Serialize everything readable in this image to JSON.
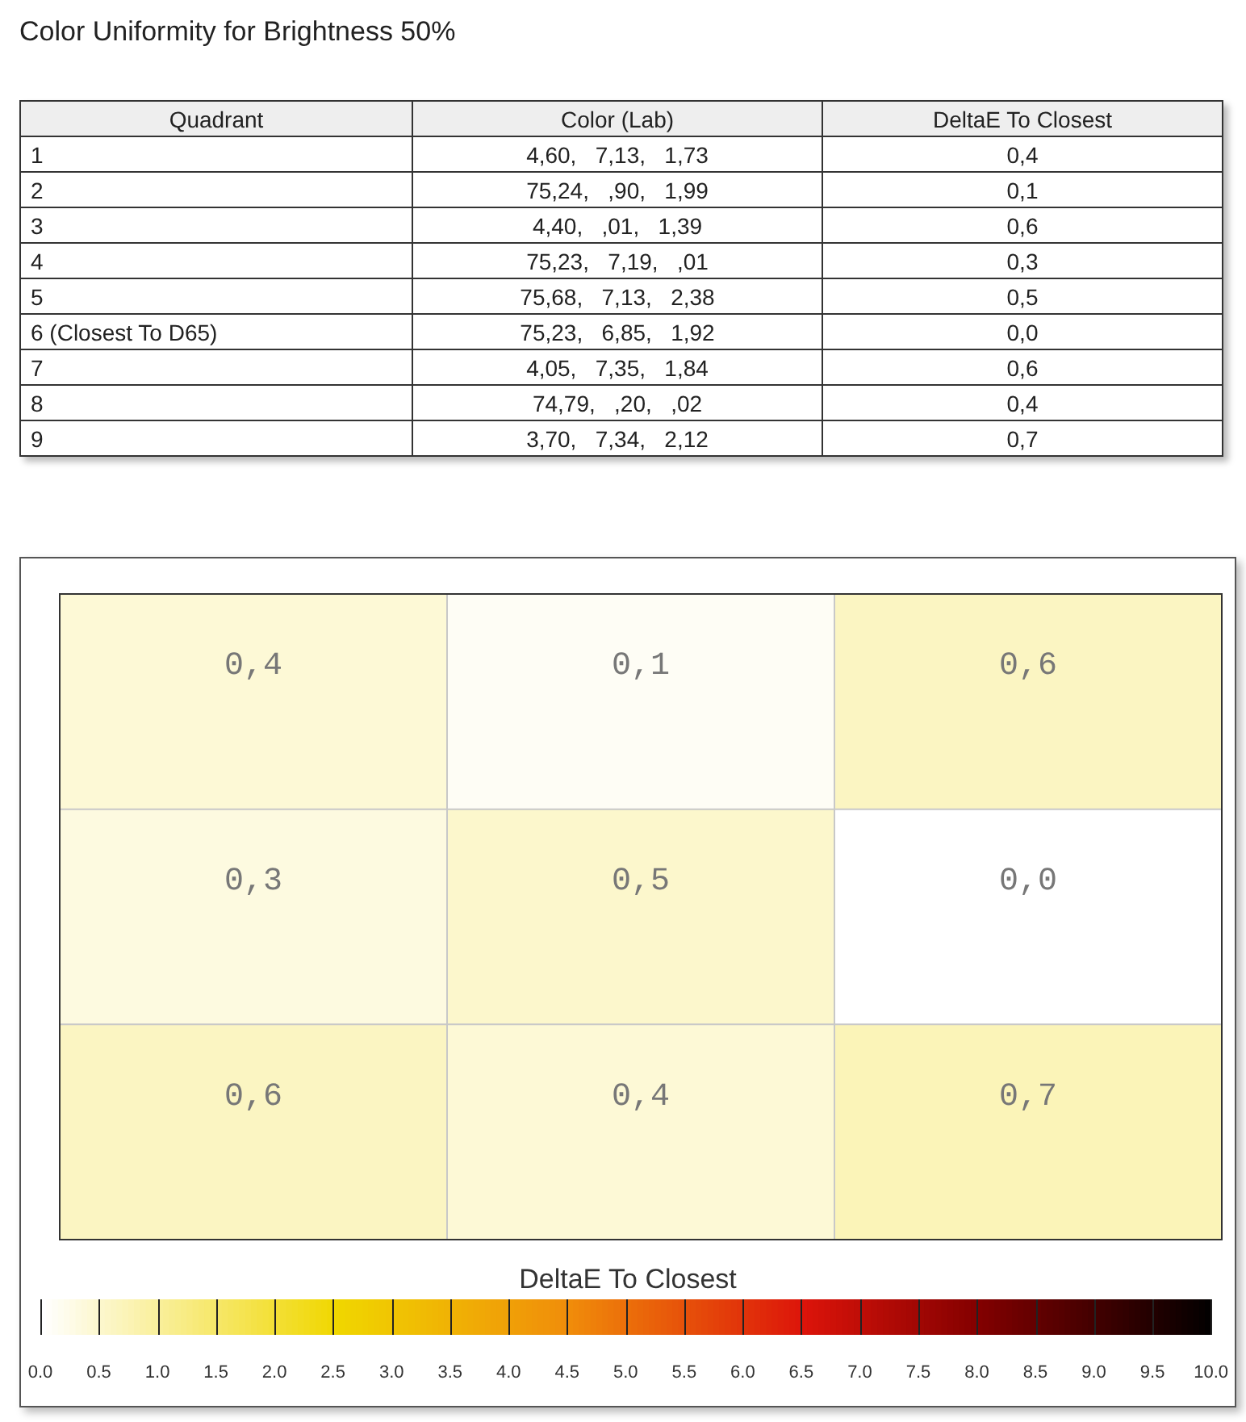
{
  "chart_data": [
    {
      "type": "other",
      "title": "Color Uniformity for Brightness 50%",
      "categories": [
        "Quadrant",
        "Color (Lab)",
        "DeltaE To Closest"
      ],
      "annotations": [
        "1",
        "4,60,   7,13,   1,73",
        "0,4",
        "2",
        "75,24,   ,90,   1,99",
        "0,1",
        "3",
        "4,40,   ,01,   1,39",
        "0,6",
        "4",
        "75,23,   7,19,   ,01",
        "0,3",
        "5",
        "75,68,   7,13,   2,38",
        "0,5",
        "6 (Closest To D65)",
        "75,23,   6,85,   1,92",
        "0,0",
        "7",
        "4,05,   7,35,   1,84",
        "0,6",
        "8",
        "74,79,   ,20,   ,02",
        "0,4",
        "9",
        "3,70,   7,34,   2,12",
        "0,7"
      ]
    },
    {
      "type": "heatmap",
      "categories": [
        null,
        null,
        null
      ],
      "y_categories": [
        null,
        null,
        null
      ],
      "cells": [
        [
          0.4,
          0.1,
          0.6
        ],
        [
          0.3,
          0.5,
          0.0
        ],
        [
          0.6,
          0.4,
          0.7
        ]
      ],
      "cell_labels": [
        [
          "0,4",
          "0,1",
          "0,6"
        ],
        [
          "0,3",
          "0,5",
          "0,0"
        ],
        [
          "0,6",
          "0,4",
          "0,7"
        ]
      ],
      "clabel": "DeltaE To Closest",
      "clim": [
        0,
        10
      ],
      "cticks": [
        {
          "value": 0,
          "label": "0.0"
        },
        {
          "value": 0.5,
          "label": "0.5"
        },
        {
          "value": 1,
          "label": "1.0"
        },
        {
          "value": 1.5,
          "label": "1.5"
        },
        {
          "value": 2,
          "label": "2.0"
        },
        {
          "value": 2.5,
          "label": "2.5"
        },
        {
          "value": 3,
          "label": "3.0"
        },
        {
          "value": 3.5,
          "label": "3.5"
        },
        {
          "value": 4,
          "label": "4.0"
        },
        {
          "value": 4.5,
          "label": "4.5"
        },
        {
          "value": 5,
          "label": "5.0"
        },
        {
          "value": 5.5,
          "label": "5.5"
        },
        {
          "value": 6,
          "label": "6.0"
        },
        {
          "value": 6.5,
          "label": "6.5"
        },
        {
          "value": 7,
          "label": "7.0"
        },
        {
          "value": 7.5,
          "label": "7.5"
        },
        {
          "value": 8,
          "label": "8.0"
        },
        {
          "value": 8.5,
          "label": "8.5"
        },
        {
          "value": 9,
          "label": "9.0"
        },
        {
          "value": 9.5,
          "label": "9.5"
        },
        {
          "value": 10,
          "label": "10.0"
        }
      ]
    }
  ]
}
